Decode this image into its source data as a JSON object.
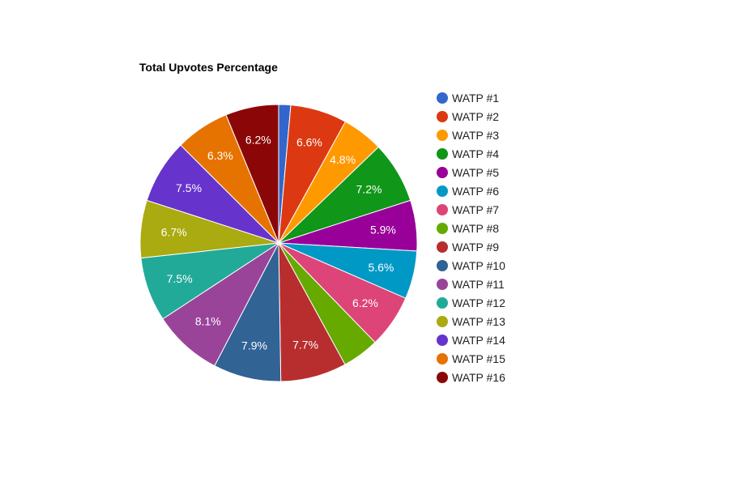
{
  "chart_data": {
    "type": "pie",
    "title": "Total Upvotes Percentage",
    "legend_position": "right",
    "categories": [
      "WATP #1",
      "WATP #2",
      "WATP #3",
      "WATP #4",
      "WATP #5",
      "WATP #6",
      "WATP #7",
      "WATP #8",
      "WATP #9",
      "WATP #10",
      "WATP #11",
      "WATP #12",
      "WATP #13",
      "WATP #14",
      "WATP #15",
      "WATP #16"
    ],
    "values": [
      1.4,
      6.6,
      4.8,
      7.2,
      5.9,
      5.6,
      6.2,
      4.3,
      7.7,
      7.9,
      8.1,
      7.5,
      6.7,
      7.5,
      6.3,
      6.2
    ],
    "labels": [
      "",
      "6.6%",
      "4.8%",
      "7.2%",
      "5.9%",
      "5.6%",
      "6.2%",
      "",
      "7.7%",
      "7.9%",
      "8.1%",
      "7.5%",
      "6.7%",
      "7.5%",
      "6.3%",
      "6.2%"
    ],
    "colors": [
      "#3366cc",
      "#dc3912",
      "#ff9900",
      "#109618",
      "#990099",
      "#0099c6",
      "#dd4477",
      "#66aa00",
      "#b82e2e",
      "#316395",
      "#994499",
      "#22aa99",
      "#aaaa11",
      "#6633cc",
      "#e67300",
      "#8b0707"
    ]
  }
}
